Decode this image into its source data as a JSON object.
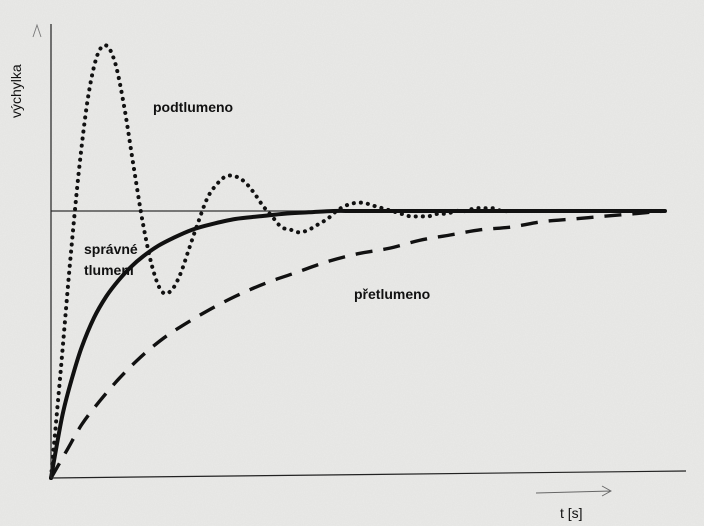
{
  "chart_data": {
    "type": "line",
    "ylabel": "výchylka",
    "xlabel": "t [s]",
    "xlim": [
      0,
      10
    ],
    "ylim": [
      0,
      1.63
    ],
    "equilibrium": 1.0,
    "grid": false,
    "axis_ticks": false,
    "series": [
      {
        "name": "podtlumeno",
        "style": "dotted",
        "color": "#111111",
        "x": [
          0,
          0.15,
          0.3,
          0.45,
          0.6,
          0.75,
          0.9,
          1.05,
          1.2,
          1.35,
          1.5,
          1.65,
          1.8,
          1.95,
          2.1,
          2.25,
          2.4,
          2.55,
          2.7,
          2.85,
          3.0,
          3.15,
          3.3,
          3.45,
          3.6,
          3.75,
          3.9,
          4.05,
          4.2,
          4.35,
          4.5,
          4.65,
          4.8,
          4.95,
          5.1,
          5.25,
          5.4,
          5.55,
          5.7,
          5.85,
          6.0,
          6.15,
          6.3,
          6.45,
          6.6,
          6.75,
          6.9,
          7.05,
          7.2,
          7.35,
          7.5,
          7.65,
          7.8,
          7.95,
          8.1,
          8.25,
          8.4,
          8.55,
          8.7,
          8.85,
          9.0,
          9.15,
          9.3,
          9.45,
          9.6,
          9.75,
          9.9,
          10.0
        ],
        "values": [
          0,
          0.38,
          0.78,
          1.14,
          1.42,
          1.58,
          1.62,
          1.55,
          1.38,
          1.16,
          0.95,
          0.79,
          0.7,
          0.7,
          0.76,
          0.86,
          0.96,
          1.05,
          1.1,
          1.13,
          1.13,
          1.11,
          1.07,
          1.02,
          0.98,
          0.94,
          0.93,
          0.92,
          0.93,
          0.95,
          0.97,
          1.0,
          1.02,
          1.03,
          1.03,
          1.02,
          1.01,
          1.0,
          0.99,
          0.98,
          0.98,
          0.98,
          0.99,
          0.99,
          1.0,
          1.0,
          1.01,
          1.01,
          1.01,
          1.0,
          1.0,
          1.0,
          1.0,
          1.0,
          1.0,
          1.0,
          1.0,
          1.0,
          1.0,
          1.0,
          1.0,
          1.0,
          1.0,
          1.0,
          1.0,
          1.0,
          1.0,
          1.0
        ]
      },
      {
        "name": "správné tlumení",
        "style": "solid",
        "color": "#111111",
        "x": [
          0,
          0.1,
          0.2,
          0.35,
          0.5,
          0.7,
          0.9,
          1.1,
          1.3,
          1.5,
          1.75,
          2.0,
          2.3,
          2.6,
          3.0,
          3.4,
          3.8,
          4.2,
          4.6,
          5.0,
          6.0,
          7.0,
          8.0,
          9.0,
          10.0
        ],
        "values": [
          0,
          0.13,
          0.25,
          0.38,
          0.49,
          0.6,
          0.68,
          0.74,
          0.79,
          0.83,
          0.87,
          0.9,
          0.93,
          0.95,
          0.97,
          0.98,
          0.99,
          0.995,
          1.0,
          1.0,
          1.0,
          1.0,
          1.0,
          1.0,
          1.0
        ]
      },
      {
        "name": "přetlumeno",
        "style": "dashed",
        "color": "#111111",
        "x": [
          0,
          0.25,
          0.5,
          0.8,
          1.1,
          1.4,
          1.7,
          2.0,
          2.5,
          3.0,
          3.5,
          4.0,
          4.5,
          5.0,
          5.5,
          6.0,
          6.5,
          7.0,
          7.5,
          8.0,
          8.5,
          9.0,
          9.5,
          10.0
        ],
        "values": [
          0,
          0.1,
          0.2,
          0.29,
          0.37,
          0.44,
          0.5,
          0.55,
          0.62,
          0.68,
          0.73,
          0.77,
          0.81,
          0.84,
          0.86,
          0.89,
          0.91,
          0.93,
          0.94,
          0.96,
          0.97,
          0.98,
          0.99,
          1.0
        ]
      }
    ],
    "annotations": [
      {
        "text": "podtlumeno",
        "series": "podtlumeno"
      },
      {
        "text_lines": [
          "správné",
          "tlumení"
        ],
        "series": "správné tlumení"
      },
      {
        "text": "přetlumeno",
        "series": "přetlumeno"
      }
    ]
  }
}
